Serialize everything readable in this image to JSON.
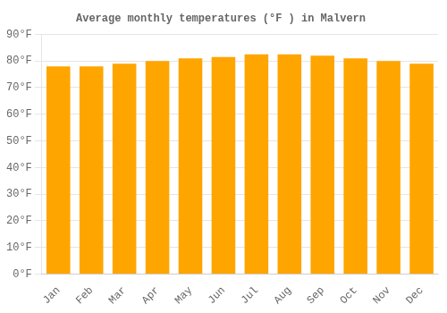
{
  "chart_data": {
    "type": "bar",
    "title": "Average monthly temperatures (°F ) in Malvern",
    "categories": [
      "Jan",
      "Feb",
      "Mar",
      "Apr",
      "May",
      "Jun",
      "Jul",
      "Aug",
      "Sep",
      "Oct",
      "Nov",
      "Dec"
    ],
    "values": [
      78,
      78,
      79,
      80,
      81,
      81.5,
      82.5,
      82.5,
      82,
      81,
      80,
      79
    ],
    "color": "#FFA500",
    "ylim": [
      0,
      90
    ],
    "yticks": [
      {
        "value": 0,
        "label": "0°F"
      },
      {
        "value": 10,
        "label": "10°F"
      },
      {
        "value": 20,
        "label": "20°F"
      },
      {
        "value": 30,
        "label": "30°F"
      },
      {
        "value": 40,
        "label": "40°F"
      },
      {
        "value": 50,
        "label": "50°F"
      },
      {
        "value": 60,
        "label": "60°F"
      },
      {
        "value": 70,
        "label": "70°F"
      },
      {
        "value": 80,
        "label": "80°F"
      },
      {
        "value": 90,
        "label": "90°F"
      }
    ],
    "grid": true
  }
}
